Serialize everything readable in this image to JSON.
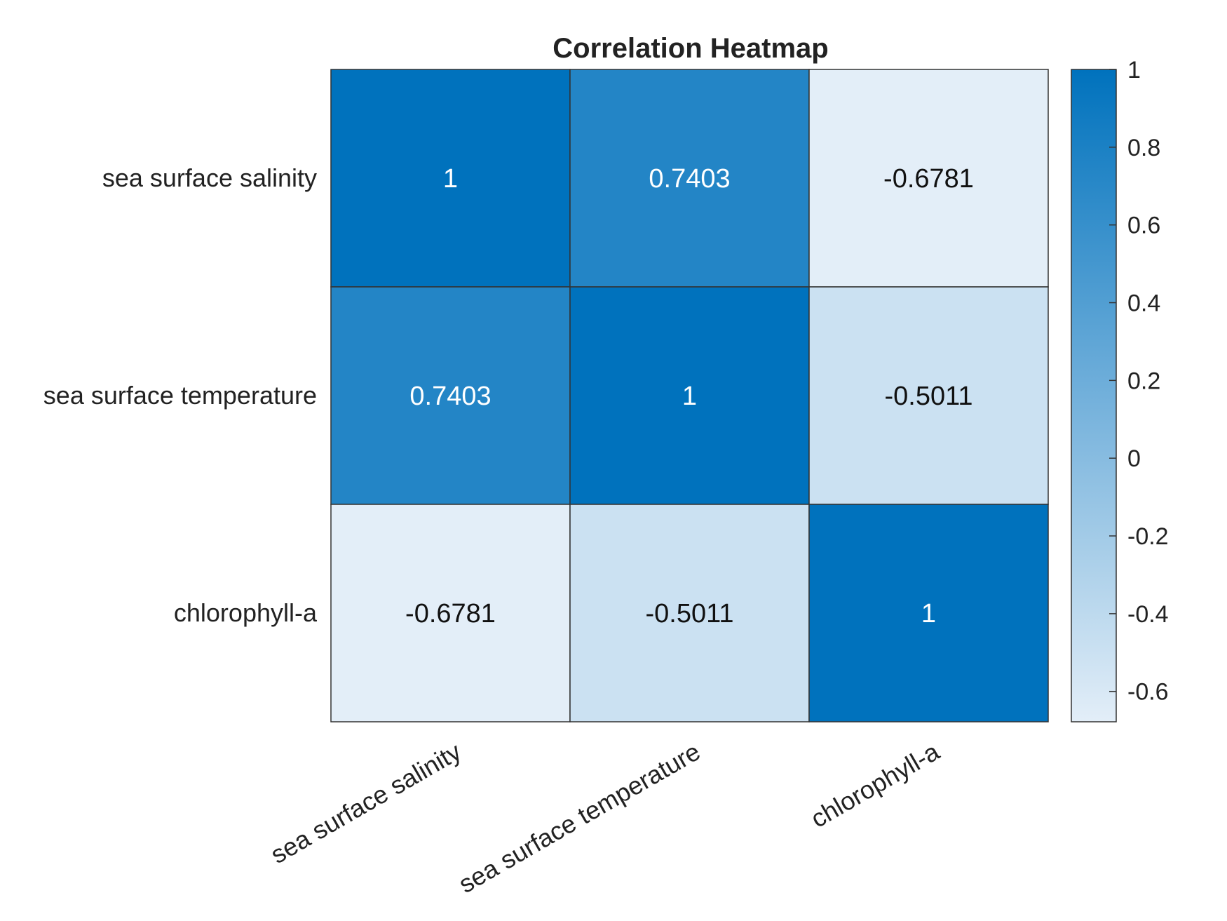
{
  "chart_data": {
    "type": "heatmap",
    "title": "Correlation Heatmap",
    "x_categories": [
      "sea surface salinity",
      "sea surface temperature",
      "chlorophyll-a"
    ],
    "y_categories": [
      "sea surface salinity",
      "sea surface temperature",
      "chlorophyll-a"
    ],
    "values": [
      [
        1,
        0.7403,
        -0.6781
      ],
      [
        0.7403,
        1,
        -0.5011
      ],
      [
        -0.6781,
        -0.5011,
        1
      ]
    ],
    "cell_labels": [
      [
        "1",
        "0.7403",
        "-0.6781"
      ],
      [
        "0.7403",
        "1",
        "-0.5011"
      ],
      [
        "-0.6781",
        "-0.5011",
        "1"
      ]
    ],
    "colorbar": {
      "min": -0.6781,
      "max": 1,
      "ticks": [
        1,
        0.8,
        0.6,
        0.4,
        0.2,
        0,
        -0.2,
        -0.4,
        -0.6
      ],
      "tick_labels": [
        "1",
        "0.8",
        "0.6",
        "0.4",
        "0.2",
        "0",
        "-0.2",
        "-0.4",
        "-0.6"
      ],
      "low_color": "#e3eef8",
      "high_color": "#0072bd"
    },
    "grid": true,
    "colorbar_position": "right"
  }
}
